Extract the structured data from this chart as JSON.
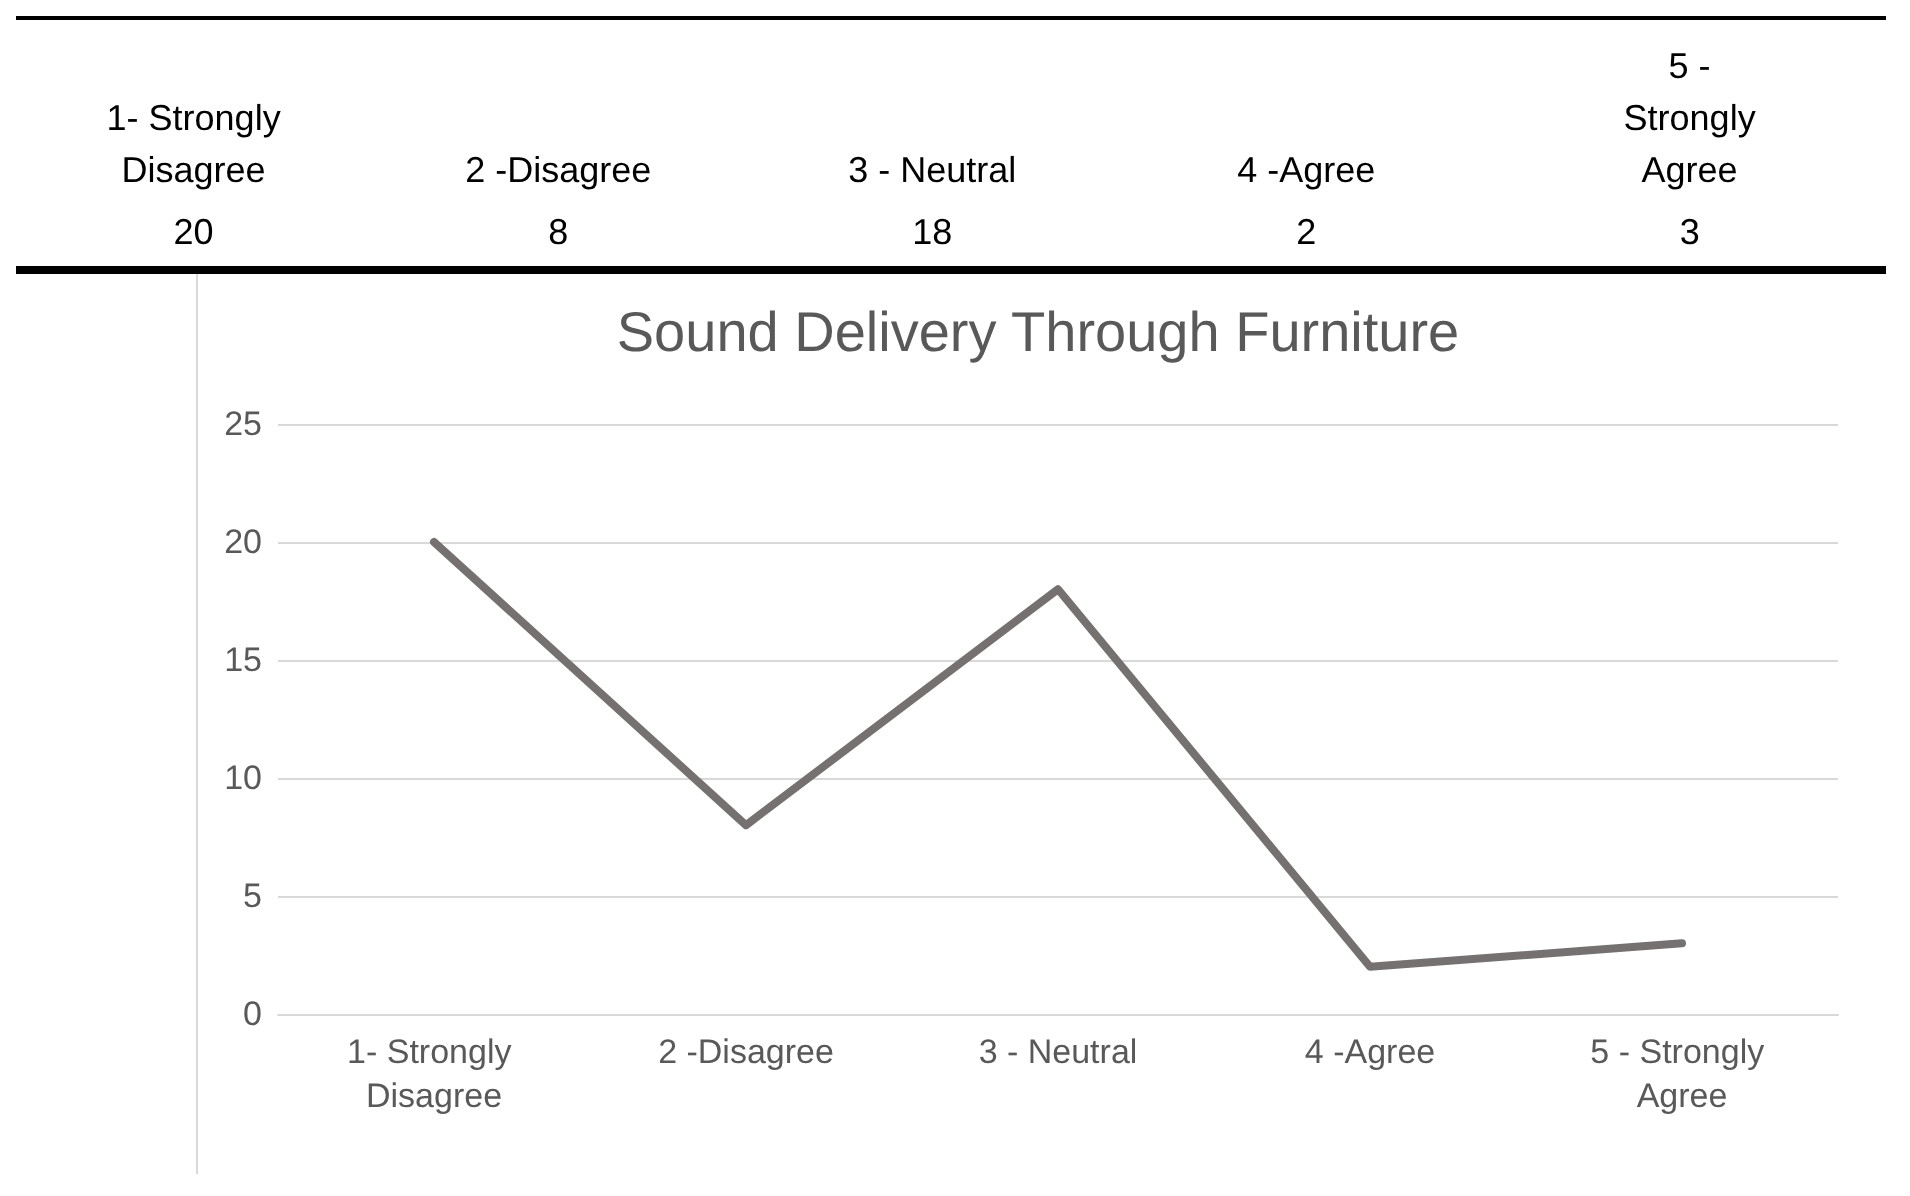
{
  "chart_data": [
    {
      "type": "other",
      "categories": [
        "1- Strongly Disagree",
        "2 -Disagree",
        "3 - Neutral",
        "4 -Agree",
        "5 - Strongly Agree"
      ],
      "values": [
        20,
        8,
        18,
        2,
        3
      ],
      "value_labels": [
        "20",
        "8",
        "18",
        "2",
        "3"
      ]
    },
    {
      "type": "line",
      "title": "Sound Delivery Through Furniture",
      "categories": [
        "1- Strongly Disagree",
        "2 -Disagree",
        "3 - Neutral",
        "4 -Agree",
        "5 - Strongly Agree"
      ],
      "values": [
        20,
        8,
        18,
        2,
        3
      ],
      "color": "#767171",
      "ylim": [
        0,
        25
      ],
      "yticks": [
        0,
        5,
        10,
        15,
        20,
        25
      ],
      "grid": "y",
      "marker": "none",
      "line_style": "solid"
    }
  ]
}
